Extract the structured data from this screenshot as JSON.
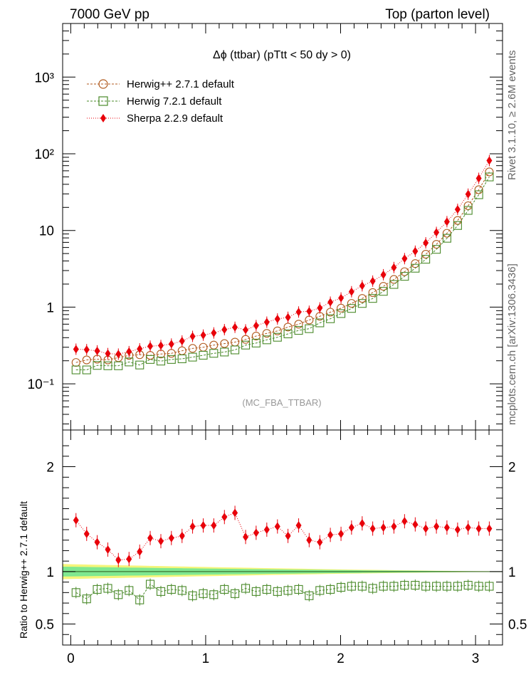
{
  "header": {
    "left": "7000 GeV pp",
    "right": "Top (parton level)"
  },
  "side_labels": {
    "rivet": "Rivet 3.1.10, ≥ 2.6M events",
    "mcplots": "mcplots.cern.ch [arXiv:1306.3436]"
  },
  "chart_data": {
    "type": "scatter",
    "title": "Δϕ (ttbar) (pTtt < 50 dy > 0)",
    "analysis_label": "(MC_FBA_TTBAR)",
    "upper_panel": {
      "yscale": "log",
      "ylim": [
        0.025,
        5000
      ],
      "ytick_labels": [
        "10⁻¹",
        "1",
        "10",
        "10²",
        "10³"
      ],
      "legend_position": "top-left"
    },
    "lower_panel": {
      "ylabel": "Ratio to Herwig++ 2.7.1 default",
      "ylim": [
        0.3,
        2.35
      ],
      "ytick_labels": [
        "0.5",
        "1",
        "2"
      ],
      "reference_bands": {
        "inner_color": "#7fe890",
        "outer_color": "#f5f57a",
        "inner_halfwidth_start": 0.045,
        "outer_halfwidth_start": 0.07
      }
    },
    "x": {
      "xlim": [
        -0.06,
        3.2
      ],
      "xtick_labels": [
        "0",
        "1",
        "2",
        "3"
      ],
      "values": [
        0.039,
        0.118,
        0.196,
        0.275,
        0.353,
        0.432,
        0.511,
        0.589,
        0.668,
        0.746,
        0.825,
        0.903,
        0.982,
        1.06,
        1.139,
        1.217,
        1.296,
        1.374,
        1.453,
        1.532,
        1.61,
        1.689,
        1.767,
        1.846,
        1.924,
        2.003,
        2.081,
        2.16,
        2.238,
        2.317,
        2.395,
        2.474,
        2.553,
        2.631,
        2.71,
        2.788,
        2.867,
        2.945,
        3.024,
        3.102
      ]
    },
    "series": [
      {
        "name": "Herwig++ 2.7.1 default",
        "color": "#b05a1e",
        "marker": "open-circle",
        "values": [
          0.19,
          0.205,
          0.21,
          0.205,
          0.22,
          0.235,
          0.24,
          0.235,
          0.245,
          0.25,
          0.27,
          0.29,
          0.3,
          0.32,
          0.335,
          0.35,
          0.38,
          0.42,
          0.455,
          0.49,
          0.55,
          0.6,
          0.68,
          0.76,
          0.86,
          0.97,
          1.12,
          1.3,
          1.55,
          1.87,
          2.3,
          2.9,
          3.7,
          4.9,
          6.6,
          9.2,
          13.5,
          21,
          34,
          58
        ],
        "ratio": [
          1,
          1,
          1,
          1,
          1,
          1,
          1,
          1,
          1,
          1,
          1,
          1,
          1,
          1,
          1,
          1,
          1,
          1,
          1,
          1,
          1,
          1,
          1,
          1,
          1,
          1,
          1,
          1,
          1,
          1,
          1,
          1,
          1,
          1,
          1,
          1,
          1,
          1,
          1,
          1
        ]
      },
      {
        "name": "Herwig 7.2.1 default",
        "color": "#4a8a2a",
        "marker": "open-square",
        "values": [
          0.152,
          0.152,
          0.174,
          0.172,
          0.172,
          0.193,
          0.176,
          0.208,
          0.198,
          0.208,
          0.212,
          0.223,
          0.236,
          0.25,
          0.26,
          0.277,
          0.32,
          0.34,
          0.375,
          0.405,
          0.448,
          0.498,
          0.524,
          0.624,
          0.706,
          0.825,
          0.963,
          1.118,
          1.3,
          1.608,
          1.978,
          2.523,
          3.219,
          4.214,
          5.676,
          7.912,
          11.61,
          18.27,
          29.24,
          49.88
        ],
        "ratio": [
          0.8,
          0.74,
          0.83,
          0.84,
          0.78,
          0.82,
          0.73,
          0.88,
          0.81,
          0.83,
          0.82,
          0.77,
          0.79,
          0.78,
          0.83,
          0.79,
          0.84,
          0.81,
          0.83,
          0.81,
          0.82,
          0.83,
          0.77,
          0.82,
          0.83,
          0.85,
          0.86,
          0.86,
          0.84,
          0.86,
          0.86,
          0.87,
          0.87,
          0.86,
          0.86,
          0.86,
          0.86,
          0.87,
          0.86,
          0.86
        ]
      },
      {
        "name": "Sherpa 2.2.9 default",
        "color": "#e8000a",
        "marker": "filled-diamond",
        "values": [
          0.283,
          0.279,
          0.269,
          0.248,
          0.244,
          0.263,
          0.286,
          0.31,
          0.316,
          0.33,
          0.362,
          0.416,
          0.432,
          0.461,
          0.509,
          0.546,
          0.505,
          0.575,
          0.637,
          0.701,
          0.737,
          0.864,
          0.884,
          0.976,
          1.161,
          1.316,
          1.589,
          1.9,
          2.186,
          2.646,
          3.284,
          4.292,
          5.365,
          6.895,
          9.437,
          13.02,
          18.83,
          29.73,
          47.87,
          81.6
        ],
        "ratio": [
          1.49,
          1.36,
          1.28,
          1.21,
          1.11,
          1.12,
          1.19,
          1.32,
          1.29,
          1.32,
          1.34,
          1.43,
          1.44,
          1.44,
          1.52,
          1.56,
          1.33,
          1.37,
          1.4,
          1.43,
          1.34,
          1.44,
          1.3,
          1.28,
          1.35,
          1.36,
          1.42,
          1.46,
          1.41,
          1.42,
          1.43,
          1.48,
          1.45,
          1.41,
          1.43,
          1.42,
          1.4,
          1.42,
          1.41,
          1.41
        ]
      }
    ]
  }
}
